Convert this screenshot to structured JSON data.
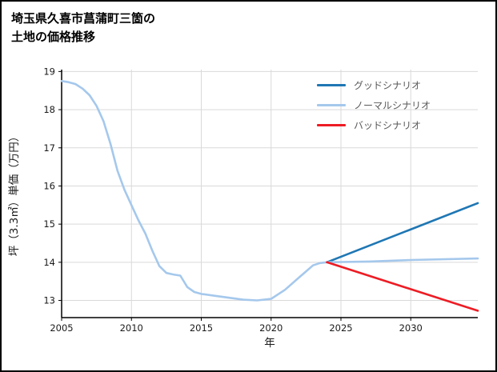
{
  "page": {
    "title_lines": [
      "埼玉県久喜市菖蒲町三箇の",
      "土地の価格推移"
    ]
  },
  "chart_data": {
    "type": "line",
    "title": "埼玉県久喜市菖蒲町三箇の土地の価格推移",
    "xlabel": "年",
    "ylabel": "坪（3.3㎡）単価（万円）",
    "xlim": [
      2005,
      2034.8
    ],
    "ylim": [
      12.55,
      19.05
    ],
    "xticks": [
      2005,
      2010,
      2015,
      2020,
      2025,
      2030
    ],
    "yticks": [
      13,
      14,
      15,
      16,
      17,
      18,
      19
    ],
    "grid": true,
    "legend_position": "top-right",
    "colors": {
      "good": "#1f77b4",
      "normal": "#a5c8ec",
      "bad": "#ed1c24",
      "grid": "#d9d9d9",
      "axis": "#000000",
      "tick_label": "#1a1a1a",
      "legend_text": "#595959"
    },
    "series": [
      {
        "id": "history",
        "in_legend": false,
        "color": "#a5c8ec",
        "x": [
          2005,
          2005.5,
          2006,
          2006.5,
          2007,
          2007.5,
          2008,
          2008.5,
          2009,
          2009.5,
          2010,
          2010.5,
          2011,
          2011.5,
          2012,
          2012.5,
          2013,
          2013.5,
          2014,
          2014.5,
          2015,
          2016,
          2017,
          2018,
          2019,
          2020,
          2021,
          2022,
          2023,
          2023.5,
          2024
        ],
        "y": [
          18.75,
          18.72,
          18.67,
          18.55,
          18.38,
          18.1,
          17.7,
          17.1,
          16.4,
          15.9,
          15.5,
          15.1,
          14.75,
          14.3,
          13.9,
          13.72,
          13.68,
          13.65,
          13.35,
          13.22,
          13.17,
          13.12,
          13.07,
          13.02,
          13.0,
          13.04,
          13.28,
          13.6,
          13.92,
          13.98,
          14.0
        ]
      },
      {
        "id": "good",
        "name": "グッドシナリオ",
        "in_legend": true,
        "color": "#1f77b4",
        "x": [
          2024,
          2034.8
        ],
        "y": [
          14.0,
          15.55
        ]
      },
      {
        "id": "normal",
        "name": "ノーマルシナリオ",
        "in_legend": true,
        "color": "#a5c8ec",
        "x": [
          2024,
          2027,
          2030,
          2034.8
        ],
        "y": [
          14.0,
          14.02,
          14.06,
          14.1
        ]
      },
      {
        "id": "bad",
        "name": "バッドシナリオ",
        "in_legend": true,
        "color": "#ed1c24",
        "x": [
          2024,
          2034.8
        ],
        "y": [
          14.0,
          12.73
        ]
      }
    ]
  }
}
